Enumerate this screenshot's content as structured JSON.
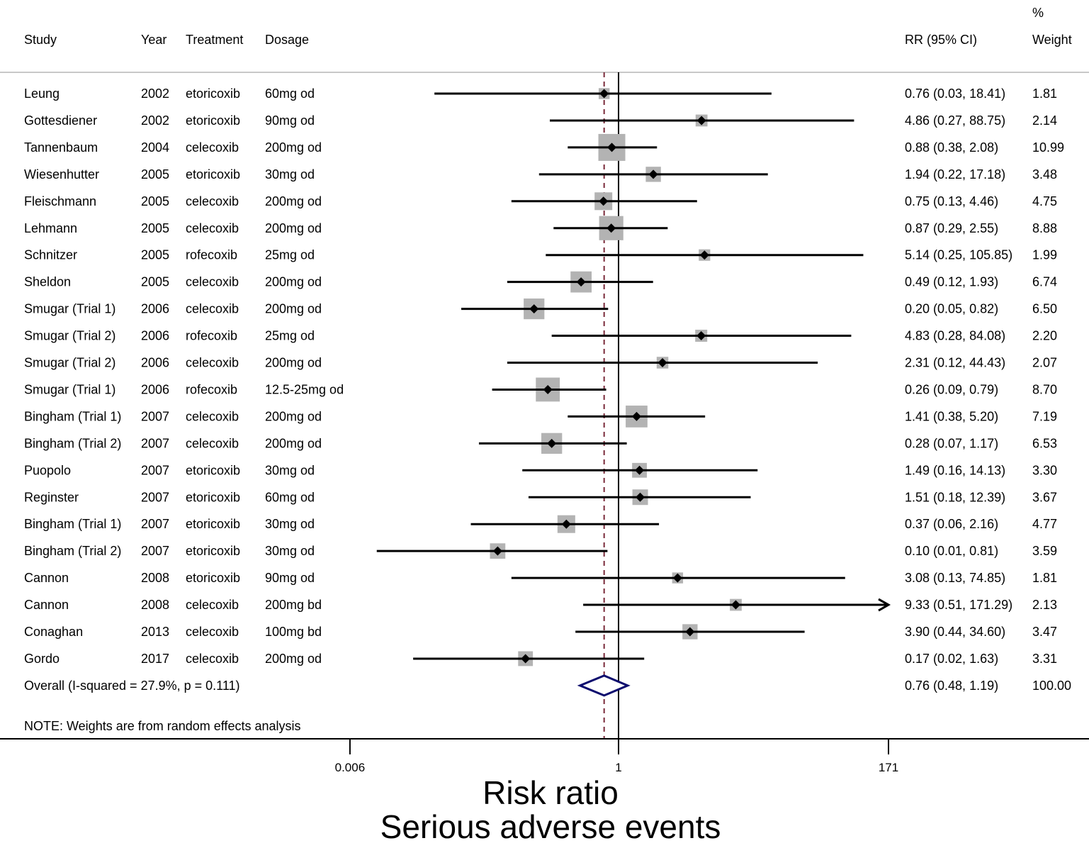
{
  "headers": {
    "study": "Study",
    "year": "Year",
    "treatment": "Treatment",
    "dosage": "Dosage",
    "rr": "RR (95% CI)",
    "weight_pct": "%",
    "weight": "Weight"
  },
  "footnote": "NOTE: Weights are from random effects analysis",
  "chart_data": {
    "type": "forest",
    "scale": "log",
    "xlabel": "Risk ratio",
    "title": "Serious adverse events",
    "x_ticks": [
      "0.006",
      "1",
      "171"
    ],
    "x_tick_values": [
      0.006,
      1,
      171
    ],
    "reference_line": 1,
    "overall_line": 0.76,
    "studies": [
      {
        "study": "Leung",
        "year": "2002",
        "treatment": "etoricoxib",
        "dosage": "60mg od",
        "rr": 0.76,
        "lo": 0.03,
        "hi": 18.41,
        "rr_text": "0.76 (0.03, 18.41)",
        "weight": 1.81,
        "weight_text": "1.81"
      },
      {
        "study": "Gottesdiener",
        "year": "2002",
        "treatment": "etoricoxib",
        "dosage": "90mg od",
        "rr": 4.86,
        "lo": 0.27,
        "hi": 88.75,
        "rr_text": "4.86 (0.27, 88.75)",
        "weight": 2.14,
        "weight_text": "2.14"
      },
      {
        "study": "Tannenbaum",
        "year": "2004",
        "treatment": "celecoxib",
        "dosage": "200mg od",
        "rr": 0.88,
        "lo": 0.38,
        "hi": 2.08,
        "rr_text": "0.88 (0.38, 2.08)",
        "weight": 10.99,
        "weight_text": "10.99"
      },
      {
        "study": "Wiesenhutter",
        "year": "2005",
        "treatment": "etoricoxib",
        "dosage": "30mg od",
        "rr": 1.94,
        "lo": 0.22,
        "hi": 17.18,
        "rr_text": "1.94 (0.22, 17.18)",
        "weight": 3.48,
        "weight_text": "3.48"
      },
      {
        "study": "Fleischmann",
        "year": "2005",
        "treatment": "celecoxib",
        "dosage": "200mg od",
        "rr": 0.75,
        "lo": 0.13,
        "hi": 4.46,
        "rr_text": "0.75 (0.13, 4.46)",
        "weight": 4.75,
        "weight_text": "4.75"
      },
      {
        "study": "Lehmann",
        "year": "2005",
        "treatment": "celecoxib",
        "dosage": "200mg od",
        "rr": 0.87,
        "lo": 0.29,
        "hi": 2.55,
        "rr_text": "0.87 (0.29, 2.55)",
        "weight": 8.88,
        "weight_text": "8.88"
      },
      {
        "study": "Schnitzer",
        "year": "2005",
        "treatment": "rofecoxib",
        "dosage": "25mg od",
        "rr": 5.14,
        "lo": 0.25,
        "hi": 105.85,
        "rr_text": "5.14 (0.25, 105.85)",
        "weight": 1.99,
        "weight_text": "1.99"
      },
      {
        "study": "Sheldon",
        "year": "2005",
        "treatment": "celecoxib",
        "dosage": "200mg od",
        "rr": 0.49,
        "lo": 0.12,
        "hi": 1.93,
        "rr_text": "0.49 (0.12, 1.93)",
        "weight": 6.74,
        "weight_text": "6.74"
      },
      {
        "study": "Smugar (Trial 1)",
        "year": "2006",
        "treatment": "celecoxib",
        "dosage": "200mg od",
        "rr": 0.2,
        "lo": 0.05,
        "hi": 0.82,
        "rr_text": "0.20 (0.05, 0.82)",
        "weight": 6.5,
        "weight_text": "6.50"
      },
      {
        "study": "Smugar (Trial 2)",
        "year": "2006",
        "treatment": "rofecoxib",
        "dosage": "25mg od",
        "rr": 4.83,
        "lo": 0.28,
        "hi": 84.08,
        "rr_text": "4.83 (0.28, 84.08)",
        "weight": 2.2,
        "weight_text": "2.20"
      },
      {
        "study": "Smugar (Trial 2)",
        "year": "2006",
        "treatment": "celecoxib",
        "dosage": "200mg od",
        "rr": 2.31,
        "lo": 0.12,
        "hi": 44.43,
        "rr_text": "2.31 (0.12, 44.43)",
        "weight": 2.07,
        "weight_text": "2.07"
      },
      {
        "study": "Smugar (Trial 1)",
        "year": "2006",
        "treatment": "rofecoxib",
        "dosage": "12.5-25mg od",
        "rr": 0.26,
        "lo": 0.09,
        "hi": 0.79,
        "rr_text": "0.26 (0.09, 0.79)",
        "weight": 8.7,
        "weight_text": "8.70"
      },
      {
        "study": "Bingham (Trial 1)",
        "year": "2007",
        "treatment": "celecoxib",
        "dosage": "200mg od",
        "rr": 1.41,
        "lo": 0.38,
        "hi": 5.2,
        "rr_text": "1.41 (0.38, 5.20)",
        "weight": 7.19,
        "weight_text": "7.19"
      },
      {
        "study": "Bingham (Trial 2)",
        "year": "2007",
        "treatment": "celecoxib",
        "dosage": "200mg od",
        "rr": 0.28,
        "lo": 0.07,
        "hi": 1.17,
        "rr_text": "0.28 (0.07, 1.17)",
        "weight": 6.53,
        "weight_text": "6.53"
      },
      {
        "study": "Puopolo",
        "year": "2007",
        "treatment": "etoricoxib",
        "dosage": "30mg od",
        "rr": 1.49,
        "lo": 0.16,
        "hi": 14.13,
        "rr_text": "1.49 (0.16, 14.13)",
        "weight": 3.3,
        "weight_text": "3.30"
      },
      {
        "study": "Reginster",
        "year": "2007",
        "treatment": "etoricoxib",
        "dosage": "60mg od",
        "rr": 1.51,
        "lo": 0.18,
        "hi": 12.39,
        "rr_text": "1.51 (0.18, 12.39)",
        "weight": 3.67,
        "weight_text": "3.67"
      },
      {
        "study": "Bingham (Trial 1)",
        "year": "2007",
        "treatment": "etoricoxib",
        "dosage": "30mg od",
        "rr": 0.37,
        "lo": 0.06,
        "hi": 2.16,
        "rr_text": "0.37 (0.06, 2.16)",
        "weight": 4.77,
        "weight_text": "4.77"
      },
      {
        "study": "Bingham (Trial 2)",
        "year": "2007",
        "treatment": "etoricoxib",
        "dosage": "30mg od",
        "rr": 0.1,
        "lo": 0.01,
        "hi": 0.81,
        "rr_text": "0.10 (0.01, 0.81)",
        "weight": 3.59,
        "weight_text": "3.59"
      },
      {
        "study": "Cannon",
        "year": "2008",
        "treatment": "etoricoxib",
        "dosage": "90mg od",
        "rr": 3.08,
        "lo": 0.13,
        "hi": 74.85,
        "rr_text": "3.08 (0.13, 74.85)",
        "weight": 1.81,
        "weight_text": "1.81"
      },
      {
        "study": "Cannon",
        "year": "2008",
        "treatment": "celecoxib",
        "dosage": "200mg bd",
        "rr": 9.33,
        "lo": 0.51,
        "hi": 171.29,
        "rr_text": "9.33 (0.51, 171.29)",
        "weight": 2.13,
        "weight_text": "2.13"
      },
      {
        "study": "Conaghan",
        "year": "2013",
        "treatment": "celecoxib",
        "dosage": "100mg bd",
        "rr": 3.9,
        "lo": 0.44,
        "hi": 34.6,
        "rr_text": "3.90 (0.44, 34.60)",
        "weight": 3.47,
        "weight_text": "3.47"
      },
      {
        "study": "Gordo",
        "year": "2017",
        "treatment": "celecoxib",
        "dosage": "200mg od",
        "rr": 0.17,
        "lo": 0.02,
        "hi": 1.63,
        "rr_text": "0.17 (0.02, 1.63)",
        "weight": 3.31,
        "weight_text": "3.31"
      }
    ],
    "overall": {
      "label": "Overall  (I-squared = 27.9%, p = 0.111)",
      "rr": 0.76,
      "lo": 0.48,
      "hi": 1.19,
      "rr_text": "0.76 (0.48, 1.19)",
      "weight_text": "100.00"
    },
    "colors": {
      "weight_box": "#b3b3b3",
      "point": "#000000",
      "ci_line": "#000000",
      "overall_diamond": "#0b0b6e",
      "overall_line": "#7a2a3a"
    }
  }
}
